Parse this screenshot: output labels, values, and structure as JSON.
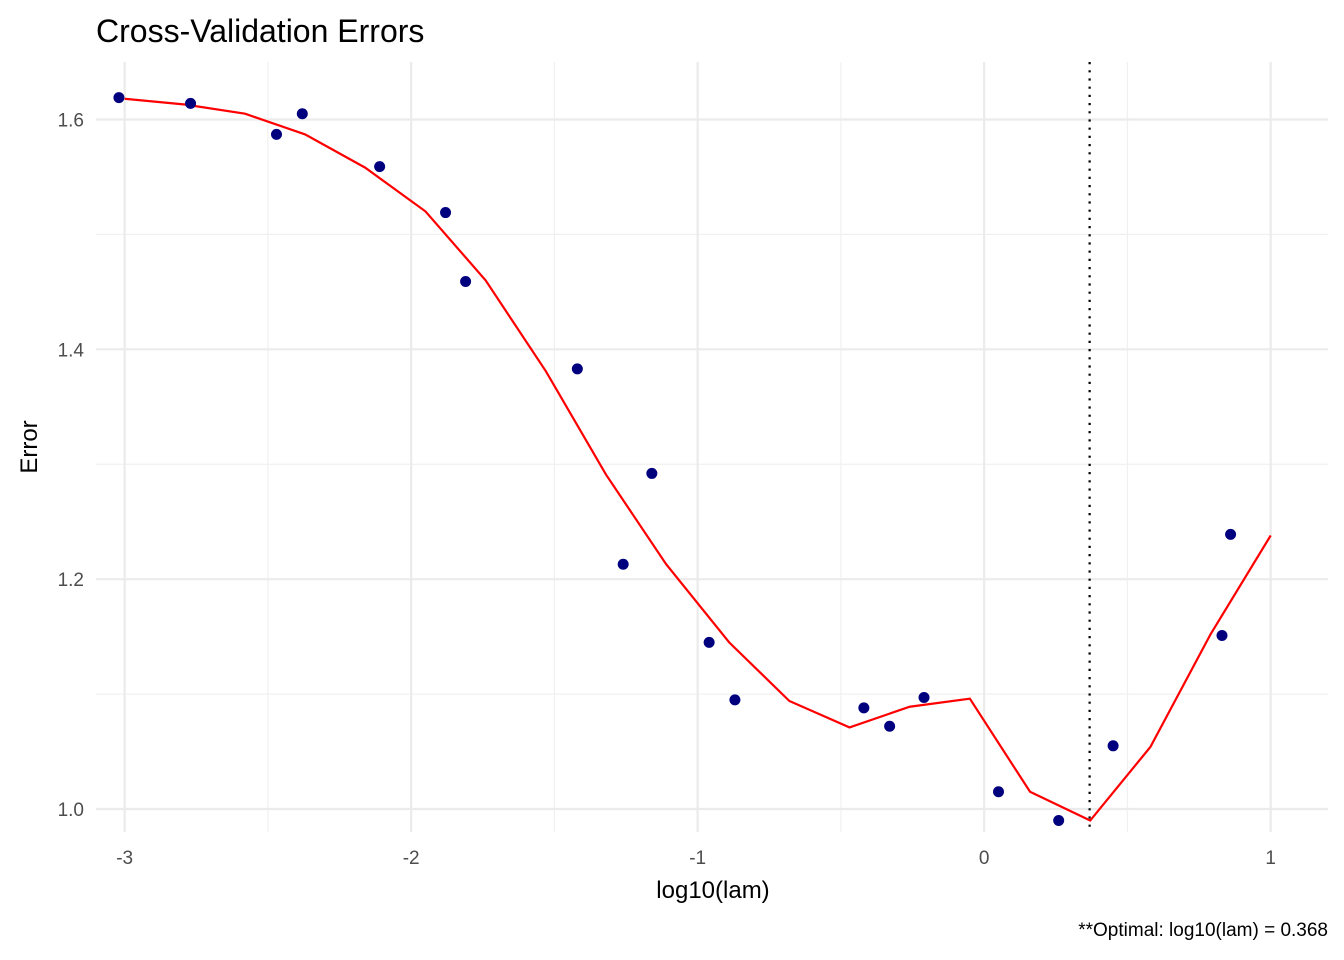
{
  "chart_data": {
    "type": "scatter",
    "title": "Cross-Validation Errors",
    "xlabel": "log10(lam)",
    "ylabel": "Error",
    "caption": "**Optimal: log10(lam) = 0.368",
    "xlim": [
      -3.1,
      1.2
    ],
    "ylim": [
      0.98,
      1.65
    ],
    "x_ticks": [
      -3,
      -2,
      -1,
      0,
      1
    ],
    "x_tick_labels": [
      "-3",
      "-2",
      "-1",
      "0",
      "1"
    ],
    "y_ticks": [
      1.0,
      1.2,
      1.4,
      1.6
    ],
    "y_tick_labels": [
      "1.0",
      "1.2",
      "1.4",
      "1.6"
    ],
    "grid": true,
    "optimal_x": 0.368,
    "points": {
      "color": "#00007f",
      "x": [
        -3.02,
        -2.77,
        -2.47,
        -2.38,
        -2.11,
        -1.88,
        -1.81,
        -1.42,
        -1.26,
        -1.16,
        -0.96,
        -0.87,
        -0.42,
        -0.33,
        -0.21,
        0.05,
        0.26,
        0.45,
        0.83,
        0.86
      ],
      "y": [
        1.619,
        1.614,
        1.587,
        1.605,
        1.559,
        1.519,
        1.459,
        1.383,
        1.213,
        1.292,
        1.145,
        1.095,
        1.088,
        1.072,
        1.097,
        1.015,
        0.99,
        1.055,
        1.151,
        1.239
      ]
    },
    "curve": {
      "color": "#ff0000",
      "x": [
        -3.0,
        -2.79,
        -2.58,
        -2.37,
        -2.16,
        -1.95,
        -1.74,
        -1.53,
        -1.32,
        -1.11,
        -0.89,
        -0.68,
        -0.47,
        -0.26,
        -0.05,
        0.16,
        0.37,
        0.58,
        0.79,
        1.0
      ],
      "y": [
        1.618,
        1.613,
        1.605,
        1.587,
        1.558,
        1.52,
        1.46,
        1.381,
        1.291,
        1.213,
        1.145,
        1.094,
        1.071,
        1.089,
        1.096,
        1.015,
        0.99,
        1.054,
        1.152,
        1.238
      ]
    }
  }
}
